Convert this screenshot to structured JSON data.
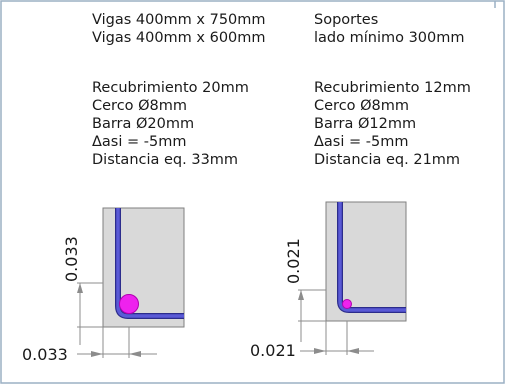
{
  "left_block": {
    "lines": [
      "Vigas 400mm x 750mm",
      "Vigas 400mm x 600mm",
      "Recubrimiento 20mm",
      "Cerco Ø8mm",
      "Barra  Ø20mm",
      "Δasi = -5mm",
      "Distancia eq. 33mm"
    ]
  },
  "right_block": {
    "lines": [
      "Soportes",
      "lado mínimo 300mm",
      "Recubrimiento 12mm",
      "Cerco Ø8mm",
      "Barra  Ø12mm",
      "Δasi = -5mm",
      "Distancia eq. 21mm"
    ]
  },
  "left_detail": {
    "vertical_dim": "0.033",
    "horizontal_dim": "0.033"
  },
  "right_detail": {
    "vertical_dim": "0.021",
    "horizontal_dim": "0.021"
  },
  "colors": {
    "frame": "#9bb0c4",
    "concrete": "#d9d9d9",
    "concrete_edge": "#7f7f7f",
    "stirrup": "#5a5ad6",
    "stirrup_edge": "#2c2c8c",
    "bar": "#ee22ee",
    "dim_line": "#8c8c8c"
  }
}
